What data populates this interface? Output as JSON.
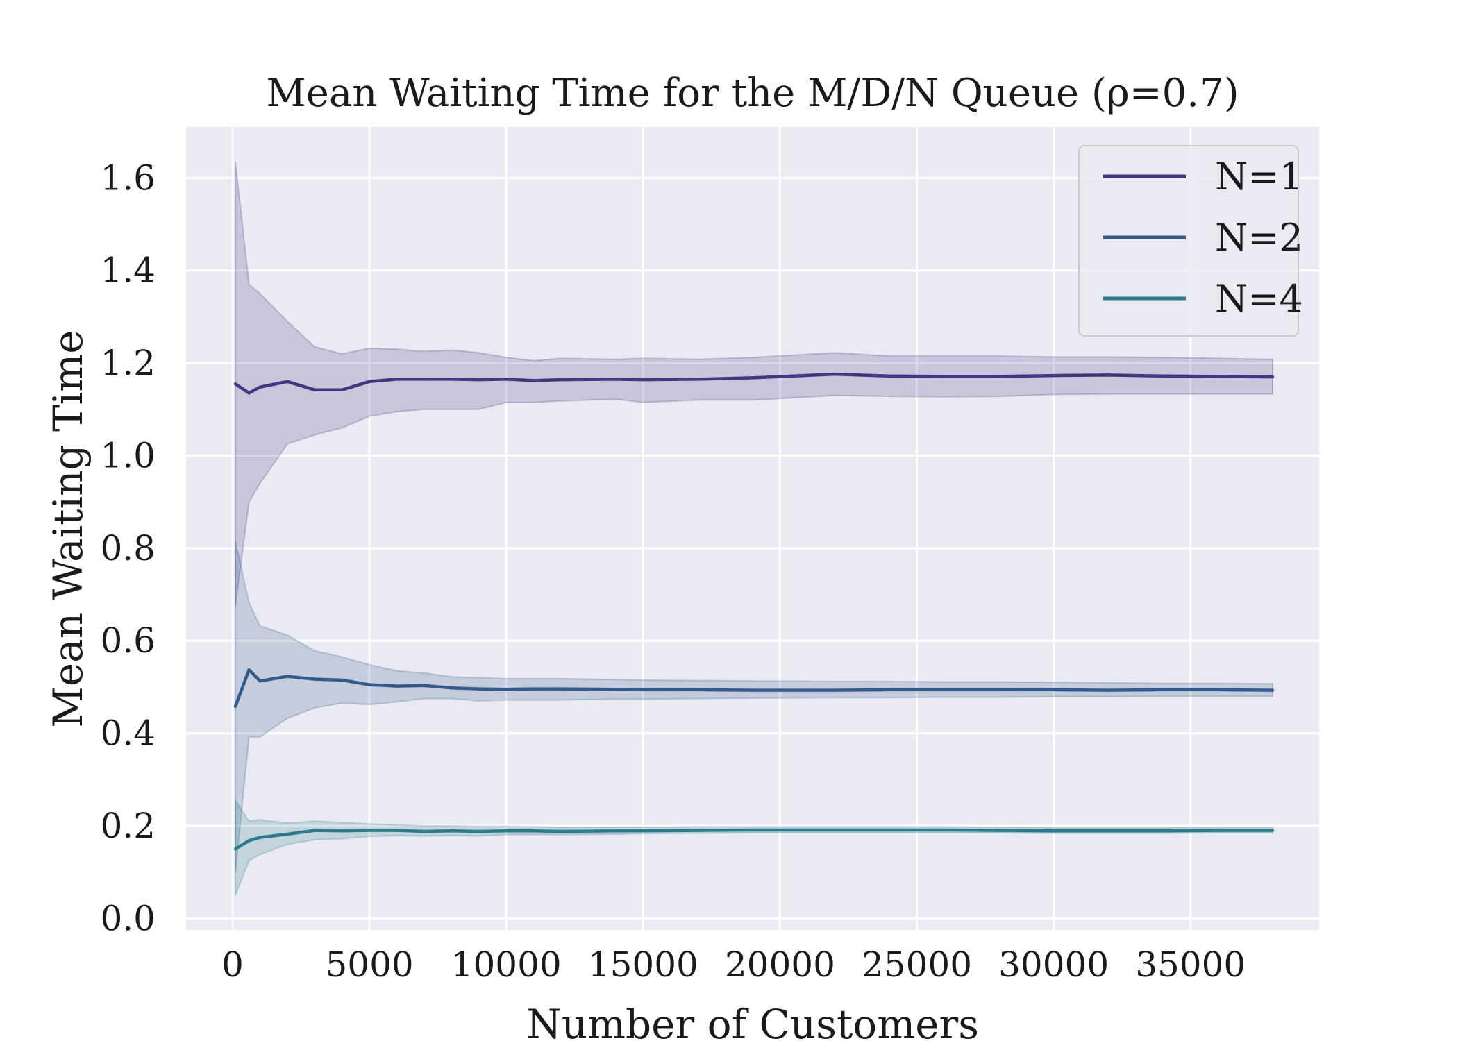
{
  "chart_data": {
    "type": "line",
    "title": "Mean Waiting Time for the M/D/N Queue (ρ=0.7)",
    "xlabel": "Number of Customers",
    "ylabel": "Mean Waiting Time",
    "xlim": [
      -1700,
      39700
    ],
    "ylim": [
      -0.025,
      1.71
    ],
    "xticks": [
      0,
      5000,
      10000,
      15000,
      20000,
      25000,
      30000,
      35000
    ],
    "xtick_labels": [
      "0",
      "5000",
      "10000",
      "15000",
      "20000",
      "25000",
      "30000",
      "35000"
    ],
    "yticks": [
      0.0,
      0.2,
      0.4,
      0.6,
      0.8,
      1.0,
      1.2,
      1.4,
      1.6
    ],
    "ytick_labels": [
      "0.0",
      "0.2",
      "0.4",
      "0.6",
      "0.8",
      "1.0",
      "1.2",
      "1.4",
      "1.6"
    ],
    "grid": true,
    "legend_position": "top-right",
    "x": [
      100,
      600,
      1000,
      2000,
      3000,
      4000,
      5000,
      6000,
      7000,
      8000,
      9000,
      10000,
      11000,
      12000,
      14000,
      15000,
      17000,
      19000,
      22000,
      24000,
      26000,
      28000,
      30000,
      32000,
      34000,
      36000,
      38000
    ],
    "series": [
      {
        "name": "N=1",
        "color": "#433680",
        "values": [
          1.155,
          1.135,
          1.148,
          1.16,
          1.142,
          1.142,
          1.16,
          1.165,
          1.165,
          1.165,
          1.164,
          1.165,
          1.162,
          1.164,
          1.165,
          1.164,
          1.165,
          1.168,
          1.176,
          1.172,
          1.171,
          1.171,
          1.173,
          1.174,
          1.172,
          1.171,
          1.17
        ],
        "lower": [
          0.675,
          0.9,
          0.94,
          1.025,
          1.045,
          1.06,
          1.085,
          1.095,
          1.1,
          1.1,
          1.1,
          1.115,
          1.115,
          1.118,
          1.122,
          1.115,
          1.12,
          1.12,
          1.13,
          1.128,
          1.127,
          1.128,
          1.132,
          1.133,
          1.133,
          1.133,
          1.133
        ],
        "upper": [
          1.635,
          1.37,
          1.35,
          1.29,
          1.235,
          1.22,
          1.232,
          1.23,
          1.225,
          1.228,
          1.222,
          1.212,
          1.205,
          1.21,
          1.208,
          1.21,
          1.208,
          1.212,
          1.222,
          1.215,
          1.215,
          1.215,
          1.213,
          1.213,
          1.212,
          1.21,
          1.208
        ]
      },
      {
        "name": "N=2",
        "color": "#345a8c",
        "values": [
          0.458,
          0.537,
          0.513,
          0.523,
          0.517,
          0.515,
          0.505,
          0.502,
          0.503,
          0.498,
          0.496,
          0.495,
          0.496,
          0.496,
          0.495,
          0.494,
          0.494,
          0.493,
          0.493,
          0.494,
          0.494,
          0.494,
          0.494,
          0.493,
          0.494,
          0.494,
          0.493
        ],
        "lower": [
          0.098,
          0.392,
          0.392,
          0.432,
          0.455,
          0.465,
          0.462,
          0.468,
          0.475,
          0.475,
          0.47,
          0.472,
          0.472,
          0.472,
          0.474,
          0.474,
          0.475,
          0.476,
          0.477,
          0.477,
          0.478,
          0.478,
          0.479,
          0.479,
          0.48,
          0.48,
          0.48
        ],
        "upper": [
          0.815,
          0.682,
          0.632,
          0.612,
          0.578,
          0.565,
          0.548,
          0.535,
          0.53,
          0.522,
          0.52,
          0.518,
          0.518,
          0.518,
          0.516,
          0.515,
          0.514,
          0.513,
          0.512,
          0.512,
          0.511,
          0.511,
          0.51,
          0.509,
          0.508,
          0.508,
          0.507
        ]
      },
      {
        "name": "N=4",
        "color": "#2b7b8c",
        "values": [
          0.15,
          0.168,
          0.175,
          0.182,
          0.19,
          0.189,
          0.19,
          0.19,
          0.188,
          0.189,
          0.188,
          0.189,
          0.189,
          0.188,
          0.189,
          0.189,
          0.19,
          0.191,
          0.191,
          0.191,
          0.191,
          0.19,
          0.189,
          0.189,
          0.189,
          0.19,
          0.19
        ],
        "lower": [
          0.05,
          0.125,
          0.138,
          0.16,
          0.17,
          0.172,
          0.177,
          0.179,
          0.178,
          0.179,
          0.178,
          0.181,
          0.181,
          0.181,
          0.182,
          0.183,
          0.184,
          0.185,
          0.185,
          0.185,
          0.185,
          0.185,
          0.184,
          0.184,
          0.184,
          0.185,
          0.185
        ],
        "upper": [
          0.255,
          0.21,
          0.213,
          0.206,
          0.21,
          0.207,
          0.204,
          0.202,
          0.2,
          0.2,
          0.199,
          0.199,
          0.198,
          0.197,
          0.197,
          0.197,
          0.198,
          0.198,
          0.198,
          0.198,
          0.198,
          0.197,
          0.196,
          0.196,
          0.196,
          0.196,
          0.196
        ]
      }
    ]
  }
}
